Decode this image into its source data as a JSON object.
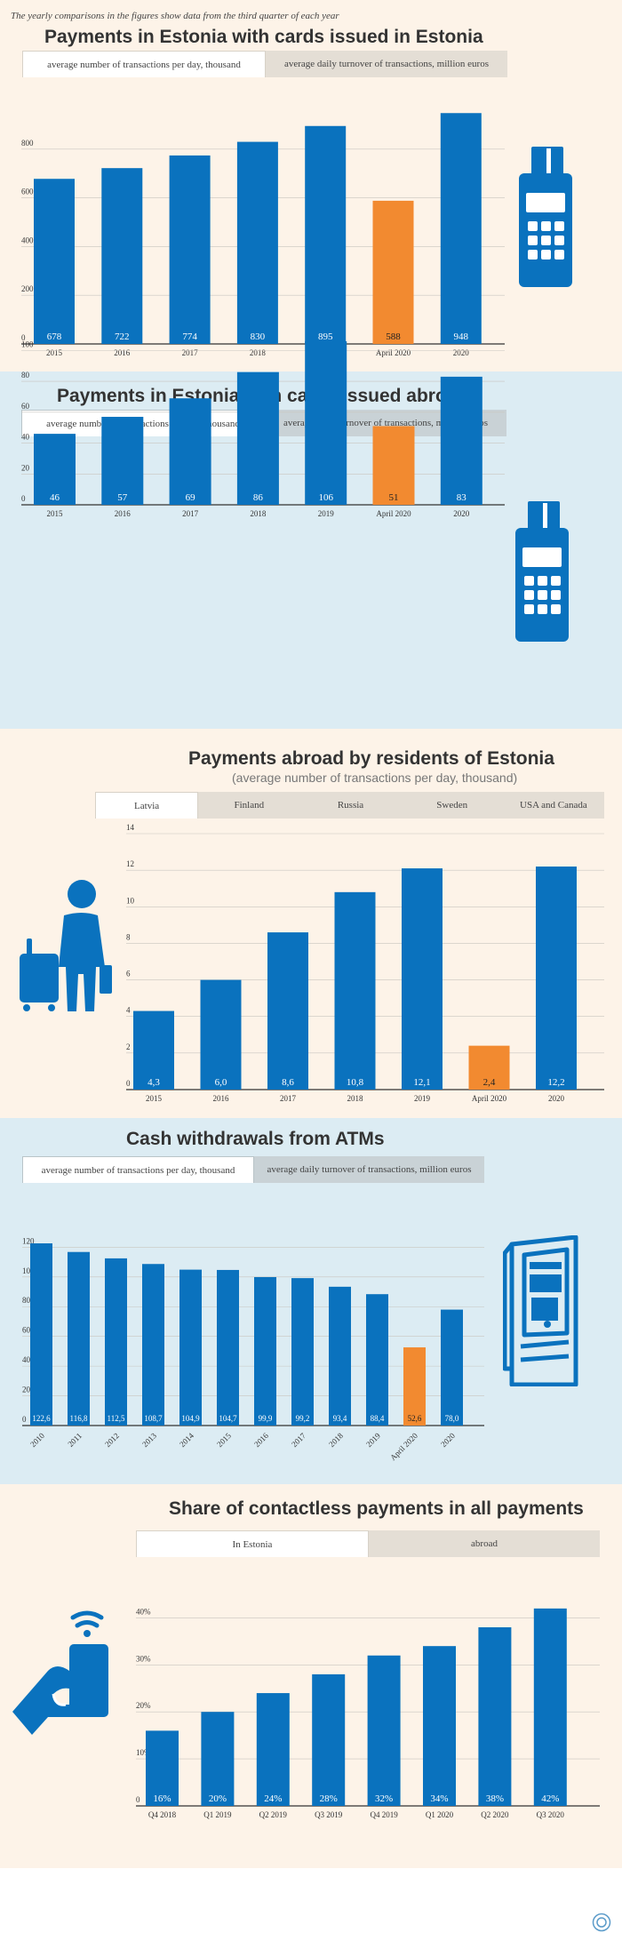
{
  "note": "The yearly comparisons in the figures show data from the third quarter of each year",
  "colors": {
    "bar": "#0a72be",
    "highlight": "#f28a30",
    "cream": "#fdf3e8",
    "lightblue": "#dcecf3"
  },
  "sections": {
    "s1": {
      "title": "Payments in Estonia with cards issued in Estonia",
      "tabs": [
        "average number of transactions per day, thousand",
        "average daily turnover of transactions, million euros"
      ]
    },
    "s2": {
      "title": "Payments in Estonia with cards issued abroad",
      "tabs": [
        "average number of transactions per day, thousand",
        "average daily turnover of transactions, million euros"
      ]
    },
    "s3": {
      "title": "Payments abroad by residents of Estonia",
      "subtitle": "(average number of transactions per day, thousand)",
      "tabs": [
        "Latvia",
        "Finland",
        "Russia",
        "Sweden",
        "USA and Canada"
      ]
    },
    "s4": {
      "title": "Cash withdrawals from ATMs",
      "tabs": [
        "average number of transactions per day, thousand",
        "average daily turnover of transactions, million euros"
      ]
    },
    "s5": {
      "title": "Share of contactless payments in all payments",
      "tabs": [
        "In Estonia",
        "abroad"
      ]
    }
  },
  "icons": {
    "s1": "card-terminal-icon",
    "s2": "card-terminal-icon",
    "s3": "traveler-with-luggage-icon",
    "s4": "atm-icon",
    "s5": "contactless-phone-icon",
    "logo": "bank-logo-icon"
  },
  "chart_data": [
    {
      "type": "bar",
      "categories": [
        "2015",
        "2016",
        "2017",
        "2018",
        "2019",
        "April 2020",
        "2020"
      ],
      "values": [
        678,
        722,
        774,
        830,
        895,
        588,
        948
      ],
      "labels": [
        "678",
        "722",
        "774",
        "830",
        "895",
        "588",
        "948"
      ],
      "highlight_index": 5,
      "ylim": [
        0,
        1000
      ],
      "yticks": [
        0,
        200,
        400,
        600,
        800
      ],
      "grid": true
    },
    {
      "type": "bar",
      "categories": [
        "2015",
        "2016",
        "2017",
        "2018",
        "2019",
        "April 2020",
        "2020"
      ],
      "values": [
        46,
        57,
        69,
        86,
        106,
        51,
        83
      ],
      "labels": [
        "46",
        "57",
        "69",
        "86",
        "106",
        "51",
        "83"
      ],
      "highlight_index": 5,
      "ylim": [
        0,
        110
      ],
      "yticks": [
        0,
        20,
        40,
        60,
        80,
        100
      ],
      "grid": true
    },
    {
      "type": "bar",
      "categories": [
        "2015",
        "2016",
        "2017",
        "2018",
        "2019",
        "April 2020",
        "2020"
      ],
      "values": [
        4.3,
        6.0,
        8.6,
        10.8,
        12.1,
        2.4,
        12.2
      ],
      "labels": [
        "4,3",
        "6,0",
        "8,6",
        "10,8",
        "12,1",
        "2,4",
        "12,2"
      ],
      "highlight_index": 5,
      "ylim": [
        0,
        14
      ],
      "yticks": [
        0,
        2,
        4,
        6,
        8,
        10,
        12,
        14
      ],
      "grid": true
    },
    {
      "type": "bar",
      "categories": [
        "2010",
        "2011",
        "2012",
        "2013",
        "2014",
        "2015",
        "2016",
        "2017",
        "2018",
        "2019",
        "April 2020",
        "2020"
      ],
      "values": [
        122.6,
        116.8,
        112.5,
        108.7,
        104.9,
        104.7,
        99.9,
        99.2,
        93.4,
        88.4,
        52.6,
        78.0
      ],
      "labels": [
        "122,6",
        "116,8",
        "112,5",
        "108,7",
        "104,9",
        "104,7",
        "99,9",
        "99,2",
        "93,4",
        "88,4",
        "52,6",
        "78,0"
      ],
      "highlight_index": 10,
      "ylim": [
        0,
        125
      ],
      "yticks": [
        0,
        20,
        40,
        60,
        80,
        100,
        120
      ],
      "grid": true,
      "rotated_xlabels": true
    },
    {
      "type": "bar",
      "categories": [
        "Q4 2018",
        "Q1 2019",
        "Q2 2019",
        "Q3 2019",
        "Q4 2019",
        "Q1 2020",
        "Q2 2020",
        "Q3 2020"
      ],
      "values": [
        16,
        20,
        24,
        28,
        32,
        34,
        38,
        42
      ],
      "labels": [
        "16%",
        "20%",
        "24%",
        "28%",
        "32%",
        "34%",
        "38%",
        "42%"
      ],
      "highlight_index": -1,
      "ylim": [
        0,
        45
      ],
      "yticks": [
        0,
        10,
        20,
        30,
        40
      ],
      "ytick_labels": [
        "0",
        "10%",
        "20%",
        "30%",
        "40%"
      ],
      "grid": true
    }
  ]
}
